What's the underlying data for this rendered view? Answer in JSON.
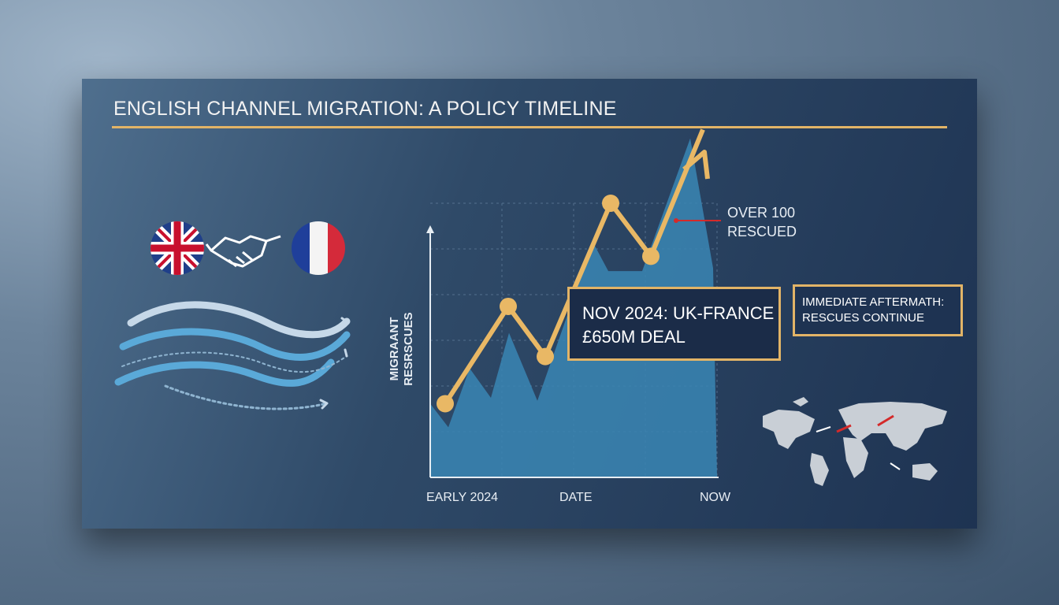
{
  "title": "ENGLISH CHANNEL MIGRATION: A POLICY TIMELINE",
  "colors": {
    "accent": "#e2b467",
    "area": "#3a86b4",
    "marker": "#d42a2a",
    "panel": "#1e3352"
  },
  "icons": [
    "uk-flag-icon",
    "handshake-icon",
    "france-flag-icon",
    "waves-icon",
    "world-map-icon"
  ],
  "chart_data": {
    "type": "line",
    "title": "",
    "xlabel": "DATE",
    "ylabel": "MIGRAANT RESRSCUES",
    "x_tick_labels": [
      "EARLY 2024",
      "NOW"
    ],
    "ylim": [
      0,
      120
    ],
    "grid": true,
    "series": [
      {
        "values": [
          25,
          58,
          41,
          93,
          75,
          118
        ],
        "style": "line-with-arrow"
      },
      {
        "values": [
          25,
          17,
          37,
          27,
          49,
          26,
          55,
          80,
          70,
          70,
          115,
          71,
          0
        ],
        "style": "area"
      }
    ],
    "annotations": [
      {
        "text": "OVER 100 RESCUED"
      },
      {
        "text_line1": "NOV 2024: UK-FRANCE",
        "text_line2": "£650M DEAL"
      },
      {
        "text_line1": "IMMEDIATE AFTERMATH:",
        "text_line2": "RESCUES CONTINUE"
      }
    ]
  }
}
